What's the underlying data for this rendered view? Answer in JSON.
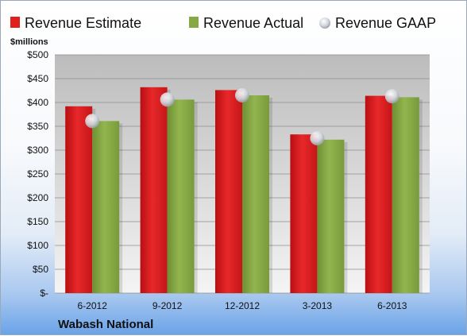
{
  "chart_data": {
    "type": "bar",
    "unit_label": "$millions",
    "company": "Wabash National",
    "categories": [
      "6-2012",
      "9-2012",
      "12-2012",
      "3-2013",
      "6-2013"
    ],
    "series": [
      {
        "name": "Revenue Estimate",
        "kind": "bar",
        "color": "#e0201f",
        "values": [
          392,
          432,
          426,
          333,
          414
        ]
      },
      {
        "name": "Revenue Actual",
        "kind": "bar",
        "color": "#86a944",
        "values": [
          361,
          406,
          415,
          322,
          411
        ]
      },
      {
        "name": "Revenue GAAP",
        "kind": "marker",
        "color": "#c9ced6",
        "values": [
          361,
          406,
          415,
          325,
          413
        ]
      }
    ],
    "ylim": [
      0,
      500
    ],
    "yticks": [
      0,
      50,
      100,
      150,
      200,
      250,
      300,
      350,
      400,
      450,
      500
    ],
    "ytick_labels": [
      "$-",
      "$50",
      "$100",
      "$150",
      "$200",
      "$250",
      "$300",
      "$350",
      "$400",
      "$450",
      "$500"
    ],
    "grid": true,
    "legend_position": "top"
  }
}
